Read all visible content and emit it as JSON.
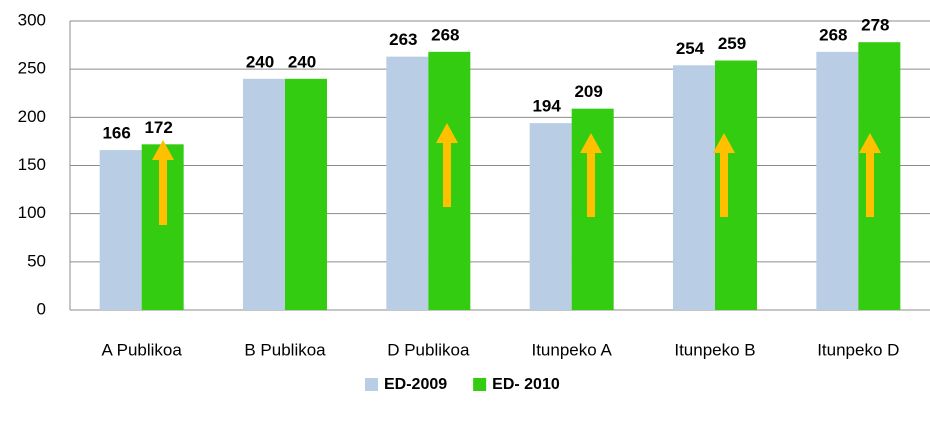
{
  "chart_data": {
    "type": "bar",
    "categories": [
      "A Publikoa",
      "B Publikoa",
      "D Publikoa",
      "Itunpeko A",
      "Itunpeko B",
      "Itunpeko D"
    ],
    "series": [
      {
        "name": "ED-2009",
        "color": "#b9cde5",
        "values": [
          166,
          240,
          263,
          194,
          254,
          268
        ]
      },
      {
        "name": "ED- 2010",
        "color": "#33cc11",
        "values": [
          172,
          240,
          268,
          209,
          259,
          278
        ]
      }
    ],
    "ylim": [
      0,
      300
    ],
    "yticks": [
      0,
      50,
      100,
      150,
      200,
      250,
      300
    ],
    "grid": true,
    "legend": "bottom"
  }
}
